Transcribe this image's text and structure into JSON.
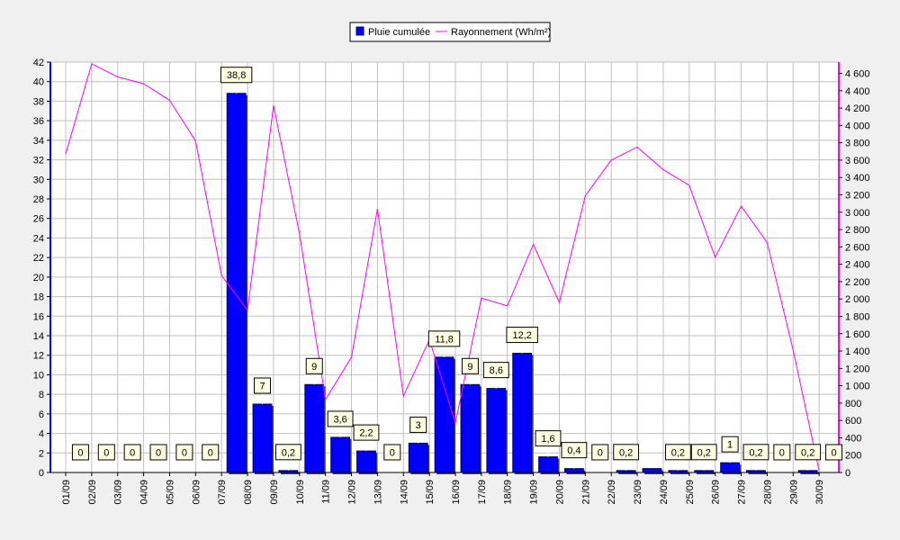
{
  "chart_data": {
    "type": "bar",
    "categories": [
      "01/09",
      "02/09",
      "03/09",
      "04/09",
      "05/09",
      "06/09",
      "07/09",
      "08/09",
      "09/09",
      "10/09",
      "11/09",
      "12/09",
      "13/09",
      "14/09",
      "15/09",
      "16/09",
      "17/09",
      "18/09",
      "19/09",
      "20/09",
      "21/09",
      "22/09",
      "23/09",
      "24/09",
      "25/09",
      "26/09",
      "27/09",
      "28/09",
      "29/09",
      "30/09"
    ],
    "series": [
      {
        "name": "Pluie cumulée",
        "type": "bar",
        "axis": "left",
        "color": "#0000ff",
        "values": [
          0,
          0,
          0,
          0,
          0,
          0,
          38.8,
          7,
          0.2,
          9,
          3.6,
          2.2,
          0,
          3,
          11.8,
          9,
          8.6,
          12.2,
          1.6,
          0.4,
          0,
          0.2,
          0.4,
          0.2,
          0.2,
          1,
          0.2,
          0,
          0.2,
          0
        ],
        "value_labels": [
          "0",
          "0",
          "0",
          "0",
          "0",
          "0",
          "38,8",
          "7",
          "0,2",
          "9",
          "3,6",
          "2,2",
          "0",
          "3",
          "11,8",
          "9",
          "8,6",
          "12,2",
          "1,6",
          "0,4",
          "0",
          "0,2",
          null,
          "0,2",
          "0,2",
          "1",
          "0,2",
          "0",
          "0,2",
          "0"
        ]
      },
      {
        "name": "Rayonnement (Wh/m²)",
        "type": "line",
        "axis": "right",
        "color": "#ff00ff",
        "values": [
          3670,
          4710,
          4560,
          4480,
          4290,
          3820,
          2270,
          1870,
          4230,
          2750,
          840,
          1330,
          3040,
          880,
          1530,
          570,
          2010,
          1920,
          2630,
          1960,
          3190,
          3600,
          3750,
          3490,
          3310,
          2480,
          3070,
          2650,
          1410,
          20
        ]
      }
    ],
    "y_left": {
      "min": 0,
      "max": 42,
      "ticks": [
        "0",
        "2",
        "4",
        "6",
        "8",
        "10",
        "12",
        "14",
        "16",
        "18",
        "20",
        "22",
        "24",
        "26",
        "28",
        "30",
        "32",
        "34",
        "36",
        "38",
        "40",
        "42"
      ]
    },
    "y_right": {
      "min": 0,
      "max": 4730,
      "ticks": [
        "0",
        "200",
        "400",
        "600",
        "800",
        "1 000",
        "1 200",
        "1 400",
        "1 600",
        "1 800",
        "2 000",
        "2 200",
        "2 400",
        "2 600",
        "2 800",
        "3 000",
        "3 200",
        "3 400",
        "3 600",
        "3 800",
        "4 000",
        "4 200",
        "4 400",
        "4 600"
      ]
    },
    "grid": true,
    "legend_position": "top-center"
  }
}
